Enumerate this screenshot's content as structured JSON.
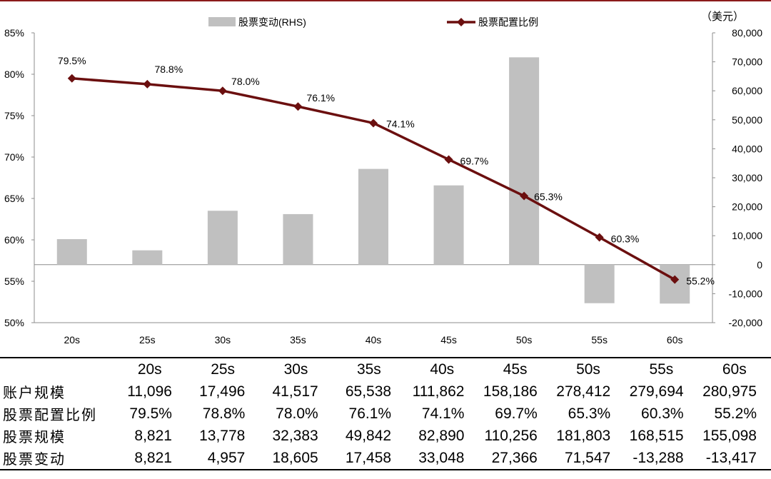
{
  "chart_data": {
    "type": "bar+line",
    "categories": [
      "20s",
      "25s",
      "30s",
      "35s",
      "40s",
      "45s",
      "50s",
      "55s",
      "60s"
    ],
    "bar_series": {
      "name": "股票变动(RHS)",
      "values": [
        8821,
        4957,
        18605,
        17458,
        33048,
        27366,
        71547,
        -13288,
        -13417
      ],
      "color": "#c0c0c0"
    },
    "line_series": {
      "name": "股票配置比例",
      "values": [
        79.5,
        78.8,
        78.0,
        76.1,
        74.1,
        69.7,
        65.3,
        60.3,
        55.2
      ],
      "labels": [
        "79.5%",
        "78.8%",
        "78.0%",
        "76.1%",
        "74.1%",
        "69.7%",
        "65.3%",
        "60.3%",
        "55.2%"
      ],
      "color": "#6b0f0f"
    },
    "left_axis": {
      "ticks": [
        "85%",
        "80%",
        "75%",
        "70%",
        "65%",
        "60%",
        "55%",
        "50%"
      ],
      "range": [
        50,
        85
      ]
    },
    "right_axis": {
      "unit": "（美元）",
      "ticks": [
        "80,000",
        "70,000",
        "60,000",
        "50,000",
        "40,000",
        "30,000",
        "20,000",
        "10,000",
        "0",
        "-10,000",
        "-20,000"
      ],
      "range": [
        -20000,
        80000
      ]
    },
    "legend_position": "top"
  },
  "table": {
    "header": [
      "20s",
      "25s",
      "30s",
      "35s",
      "40s",
      "45s",
      "50s",
      "55s",
      "60s"
    ],
    "rows": [
      {
        "label": "账户规模",
        "values": [
          "11,096",
          "17,496",
          "41,517",
          "65,538",
          "111,862",
          "158,186",
          "278,412",
          "279,694",
          "280,975"
        ]
      },
      {
        "label": "股票配置比例",
        "values": [
          "79.5%",
          "78.8%",
          "78.0%",
          "76.1%",
          "74.1%",
          "69.7%",
          "65.3%",
          "60.3%",
          "55.2%"
        ]
      },
      {
        "label": "股票规模",
        "values": [
          "8,821",
          "13,778",
          "32,383",
          "49,842",
          "82,890",
          "110,256",
          "181,803",
          "168,515",
          "155,098"
        ]
      },
      {
        "label": "股票变动",
        "values": [
          "8,821",
          "4,957",
          "18,605",
          "17,458",
          "33,048",
          "27,366",
          "71,547",
          "-13,288",
          "-13,417"
        ]
      }
    ]
  }
}
